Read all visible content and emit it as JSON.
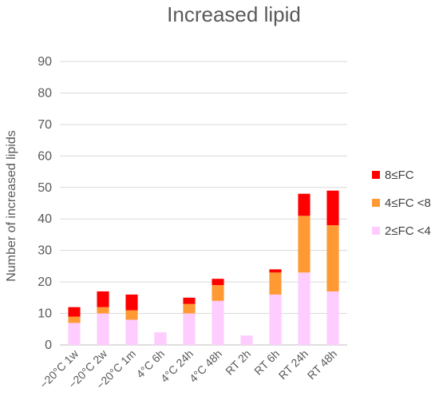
{
  "chart_data": {
    "type": "bar",
    "stacked": true,
    "title": "Increased lipid",
    "xlabel": "",
    "ylabel": "Number of increased lipids",
    "ylim": [
      0,
      90
    ],
    "yticks": [
      0,
      10,
      20,
      30,
      40,
      50,
      60,
      70,
      80,
      90
    ],
    "grid": true,
    "legend_position": "right",
    "categories": [
      "−20°C 1w",
      "−20°C 2w",
      "−20°C 1m",
      "4°C 6h",
      "4°C 24h",
      "4°C 48h",
      "RT 2h",
      "RT 6h",
      "RT 24h",
      "RT 48h"
    ],
    "series": [
      {
        "name": "2≤FC <4",
        "color": "#ffccff",
        "values": [
          7,
          10,
          8,
          4,
          10,
          14,
          3,
          16,
          23,
          17
        ]
      },
      {
        "name": "4≤FC <8",
        "color": "#ff9933",
        "values": [
          2,
          2,
          3,
          0,
          3,
          5,
          0,
          7,
          18,
          21
        ]
      },
      {
        "name": "8≤FC",
        "color": "#ff0000",
        "values": [
          3,
          5,
          5,
          0,
          2,
          2,
          0,
          1,
          7,
          11
        ]
      }
    ],
    "legend_order": [
      "8≤FC",
      "4≤FC <8",
      "2≤FC <4"
    ]
  }
}
